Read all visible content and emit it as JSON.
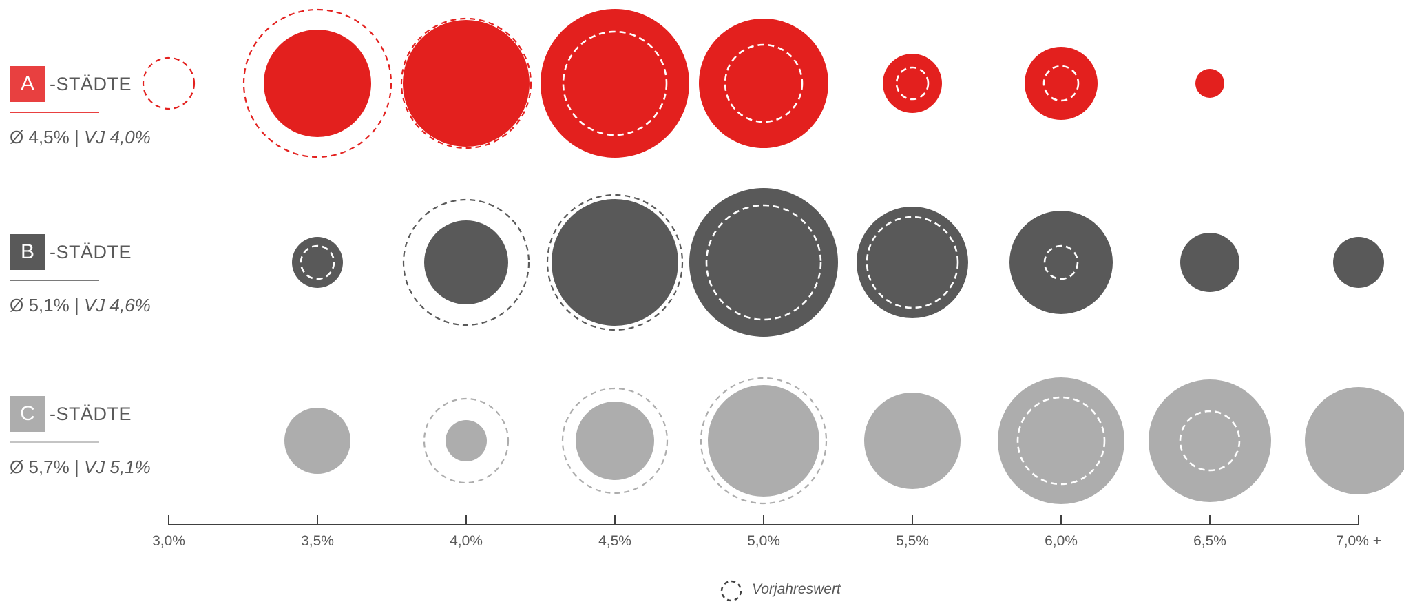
{
  "chart_data": {
    "type": "bubble",
    "x_ticks": [
      "3,0%",
      "3,5%",
      "4,0%",
      "4,5%",
      "5,0%",
      "5,5%",
      "6,0%",
      "6,5%",
      "7,0% +"
    ],
    "xlim": [
      3.0,
      7.0
    ],
    "legend": {
      "label": "Vorjahreswert",
      "placement": "bottom-center"
    },
    "colors": {
      "A": "#e3201e",
      "B": "#595959",
      "C": "#adadad"
    },
    "categories": [
      {
        "letter": "A",
        "suffix": "-STÄDTE",
        "avg": "Ø 4,5%",
        "sep": "|",
        "vj": "VJ 4,0%",
        "points": [
          {
            "x": 3.0,
            "current": 0,
            "previous": 37
          },
          {
            "x": 3.5,
            "current": 78,
            "previous": 107
          },
          {
            "x": 4.0,
            "current": 92,
            "previous": 94
          },
          {
            "x": 4.5,
            "current": 108,
            "previous": 75
          },
          {
            "x": 5.0,
            "current": 94,
            "previous": 56
          },
          {
            "x": 5.5,
            "current": 43,
            "previous": 23
          },
          {
            "x": 6.0,
            "current": 53,
            "previous": 25
          },
          {
            "x": 6.5,
            "current": 21,
            "previous": 0
          }
        ]
      },
      {
        "letter": "B",
        "suffix": "-STÄDTE",
        "avg": "Ø 5,1%",
        "sep": "|",
        "vj": "VJ 4,6%",
        "points": [
          {
            "x": 3.5,
            "current": 37,
            "previous": 24
          },
          {
            "x": 4.0,
            "current": 61,
            "previous": 91
          },
          {
            "x": 4.5,
            "current": 92,
            "previous": 98
          },
          {
            "x": 5.0,
            "current": 108,
            "previous": 83
          },
          {
            "x": 5.5,
            "current": 81,
            "previous": 66
          },
          {
            "x": 6.0,
            "current": 75,
            "previous": 24
          },
          {
            "x": 6.5,
            "current": 43,
            "previous": 0
          },
          {
            "x": 7.0,
            "current": 37,
            "previous": 0
          }
        ]
      },
      {
        "letter": "C",
        "suffix": "-STÄDTE",
        "avg": "Ø 5,7%",
        "sep": "|",
        "vj": "VJ 5,1%",
        "points": [
          {
            "x": 3.5,
            "current": 48,
            "previous": 0
          },
          {
            "x": 4.0,
            "current": 30,
            "previous": 61
          },
          {
            "x": 4.5,
            "current": 57,
            "previous": 76
          },
          {
            "x": 5.0,
            "current": 81,
            "previous": 91
          },
          {
            "x": 5.5,
            "current": 70,
            "previous": 68
          },
          {
            "x": 6.0,
            "current": 92,
            "previous": 63
          },
          {
            "x": 6.5,
            "current": 89,
            "previous": 43
          },
          {
            "x": 7.0,
            "current": 78,
            "previous": 0
          }
        ]
      }
    ]
  }
}
